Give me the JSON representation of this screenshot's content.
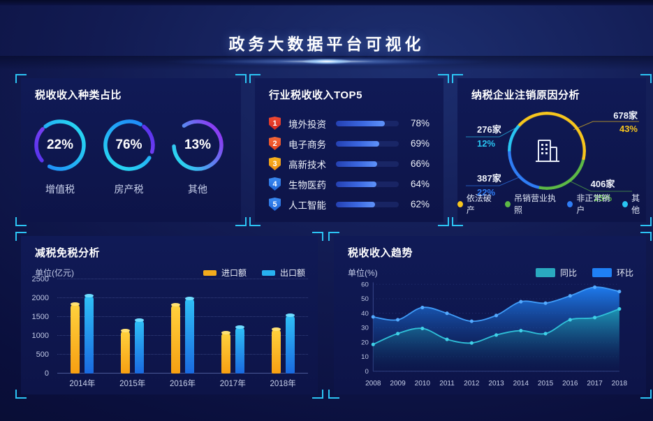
{
  "header": {
    "title": "政务大数据平台可视化"
  },
  "chart_data": [
    {
      "type": "donut",
      "title": "税收收入种类占比",
      "values": [
        {
          "label": "增值税",
          "pct": 22
        },
        {
          "label": "房产税",
          "pct": 76
        },
        {
          "label": "其他",
          "pct": 13
        }
      ]
    },
    {
      "type": "bar",
      "title": "行业税收收入TOP5",
      "orientation": "horizontal",
      "categories": [
        "境外投资",
        "电子商务",
        "高新技术",
        "生物医药",
        "人工智能"
      ],
      "values": [
        78,
        69,
        66,
        64,
        62
      ],
      "unit": "%",
      "xlim": [
        0,
        100
      ]
    },
    {
      "type": "pie",
      "title": "纳税企业注销原因分析",
      "slices": [
        {
          "label": "依法破产",
          "count": "678家",
          "pct": 43,
          "color": "#f6c51d"
        },
        {
          "label": "吊销营业执照",
          "count": "406家",
          "pct": 25,
          "color": "#5cb946"
        },
        {
          "label": "非正常销户",
          "count": "387家",
          "pct": 22,
          "color": "#2f7df5"
        },
        {
          "label": "其他",
          "count": "276家",
          "pct": 12,
          "color": "#29c5f2"
        }
      ],
      "legend_position": "bottom"
    },
    {
      "type": "bar",
      "title": "减税免税分析",
      "ylabel": "单位(亿元)",
      "ylim": [
        0,
        2500
      ],
      "yticks": [
        0,
        500,
        1000,
        1500,
        2000,
        2500
      ],
      "categories": [
        "2014年",
        "2015年",
        "2016年",
        "2017年",
        "2018年"
      ],
      "series": [
        {
          "name": "进口额",
          "color": "#f2ab1d",
          "values": [
            1850,
            1140,
            1825,
            1090,
            1180
          ]
        },
        {
          "name": "出口额",
          "color": "#28b2f0",
          "values": [
            2080,
            1430,
            2000,
            1250,
            1560
          ]
        }
      ],
      "grid": "dotted",
      "legend_position": "top-right"
    },
    {
      "type": "area",
      "title": "税收收入趋势",
      "ylabel": "单位(%)",
      "ylim": [
        0,
        60
      ],
      "yticks": [
        0,
        10,
        20,
        30,
        40,
        50,
        60
      ],
      "x": [
        "2008",
        "2009",
        "2010",
        "2011",
        "2012",
        "2013",
        "2014",
        "2015",
        "2016",
        "2017",
        "2018"
      ],
      "series": [
        {
          "name": "同比",
          "color": "#2aa9bf",
          "values": [
            18.5,
            26,
            29.5,
            22,
            19.5,
            25,
            28,
            26,
            35.5,
            37,
            43
          ]
        },
        {
          "name": "环比",
          "color": "#1f80f5",
          "values": [
            37.5,
            35.5,
            44,
            40,
            34.5,
            38.5,
            48,
            47,
            52,
            58,
            55
          ]
        }
      ],
      "grid": "dotted",
      "legend_position": "top-right"
    }
  ]
}
